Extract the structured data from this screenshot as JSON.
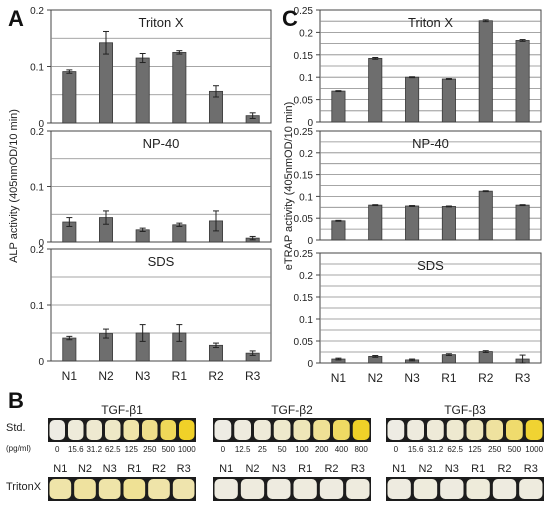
{
  "panel_labels": {
    "a": "A",
    "b": "B",
    "c": "C"
  },
  "chart_data": [
    {
      "id": "A",
      "type": "bar",
      "ylabel": "ALP activity (405nmOD/10 min)",
      "categories": [
        "N1",
        "N2",
        "N3",
        "R1",
        "R2",
        "R3"
      ],
      "bar_color": "#6e6e6e",
      "subplots": [
        {
          "title": "Triton X",
          "ylim": [
            0,
            0.2
          ],
          "ticks": [
            "0",
            "0.1",
            "0.2"
          ],
          "tick_values": [
            0,
            0.1,
            0.2
          ],
          "values": [
            0.091,
            0.142,
            0.115,
            0.125,
            0.056,
            0.013
          ],
          "errors": [
            0.003,
            0.02,
            0.008,
            0.003,
            0.01,
            0.005
          ]
        },
        {
          "title": "NP-40",
          "ylim": [
            0,
            0.2
          ],
          "ticks": [
            "0",
            "0.1",
            "0.2"
          ],
          "tick_values": [
            0,
            0.1,
            0.2
          ],
          "values": [
            0.036,
            0.044,
            0.022,
            0.031,
            0.038,
            0.007
          ],
          "errors": [
            0.008,
            0.012,
            0.003,
            0.003,
            0.018,
            0.003
          ]
        },
        {
          "title": "SDS",
          "ylim": [
            0,
            0.2
          ],
          "ticks": [
            "0",
            "0.1",
            "0.2"
          ],
          "tick_values": [
            0,
            0.1,
            0.2
          ],
          "values": [
            0.041,
            0.049,
            0.05,
            0.05,
            0.028,
            0.014
          ],
          "errors": [
            0.003,
            0.008,
            0.015,
            0.015,
            0.004,
            0.004
          ]
        }
      ]
    },
    {
      "id": "C",
      "type": "bar",
      "ylabel": "eTRAP activity (405nmOD/10 min)",
      "categories": [
        "N1",
        "N2",
        "N3",
        "R1",
        "R2",
        "R3"
      ],
      "bar_color": "#6e6e6e",
      "subplots": [
        {
          "title": "Triton X",
          "ylim": [
            0,
            0.25
          ],
          "ticks": [
            "0",
            "0.05",
            "0.1",
            "0.15",
            "0.2",
            "0.25"
          ],
          "tick_values": [
            0,
            0.05,
            0.1,
            0.15,
            0.2,
            0.25
          ],
          "values": [
            0.069,
            0.142,
            0.1,
            0.096,
            0.226,
            0.182
          ],
          "errors": [
            0.001,
            0.002,
            0.001,
            0.001,
            0.002,
            0.002
          ]
        },
        {
          "title": "NP-40",
          "ylim": [
            0,
            0.25
          ],
          "ticks": [
            "0",
            "0.05",
            "0.1",
            "0.15",
            "0.2",
            "0.25"
          ],
          "tick_values": [
            0,
            0.05,
            0.1,
            0.15,
            0.2,
            0.25
          ],
          "values": [
            0.044,
            0.08,
            0.078,
            0.077,
            0.112,
            0.08
          ],
          "errors": [
            0.001,
            0.001,
            0.001,
            0.001,
            0.001,
            0.001
          ]
        },
        {
          "title": "SDS",
          "ylim": [
            0,
            0.25
          ],
          "ticks": [
            "0",
            "0.05",
            "0.1",
            "0.15",
            "0.2",
            "0.25"
          ],
          "tick_values": [
            0,
            0.05,
            0.1,
            0.15,
            0.2,
            0.25
          ],
          "values": [
            0.009,
            0.015,
            0.007,
            0.019,
            0.026,
            0.009
          ],
          "errors": [
            0.002,
            0.002,
            0.002,
            0.002,
            0.002,
            0.009
          ]
        }
      ]
    }
  ],
  "panel_b": {
    "std_label": "Std.",
    "unit_label": "(pg/ml)",
    "row2_label": "TritonX",
    "strips": [
      {
        "title": "TGF-β1",
        "conc": [
          "0",
          "15.6",
          "31.2",
          "62.5",
          "125",
          "250",
          "500",
          "1000"
        ],
        "std_levels": [
          0.0,
          0.05,
          0.1,
          0.15,
          0.3,
          0.45,
          0.7,
          0.95
        ],
        "samples": [
          "N1",
          "N2",
          "N3",
          "R1",
          "R2",
          "R3"
        ],
        "sample_levels": [
          0.3,
          0.35,
          0.3,
          0.4,
          0.3,
          0.28
        ]
      },
      {
        "title": "TGF-β2",
        "conc": [
          "0",
          "12.5",
          "25",
          "50",
          "100",
          "200",
          "400",
          "800"
        ],
        "std_levels": [
          0.0,
          0.03,
          0.06,
          0.12,
          0.22,
          0.4,
          0.65,
          0.95
        ],
        "samples": [
          "N1",
          "N2",
          "N3",
          "R1",
          "R2",
          "R3"
        ],
        "sample_levels": [
          0.02,
          0.03,
          0.02,
          0.03,
          0.02,
          0.03
        ]
      },
      {
        "title": "TGF-β3",
        "conc": [
          "0",
          "15.6",
          "31.2",
          "62.5",
          "125",
          "250",
          "500",
          "1000"
        ],
        "std_levels": [
          0.0,
          0.03,
          0.06,
          0.1,
          0.2,
          0.35,
          0.6,
          0.9
        ],
        "samples": [
          "N1",
          "N2",
          "N3",
          "R1",
          "R2",
          "R3"
        ],
        "sample_levels": [
          0.02,
          0.04,
          0.02,
          0.05,
          0.02,
          0.03
        ]
      }
    ]
  }
}
